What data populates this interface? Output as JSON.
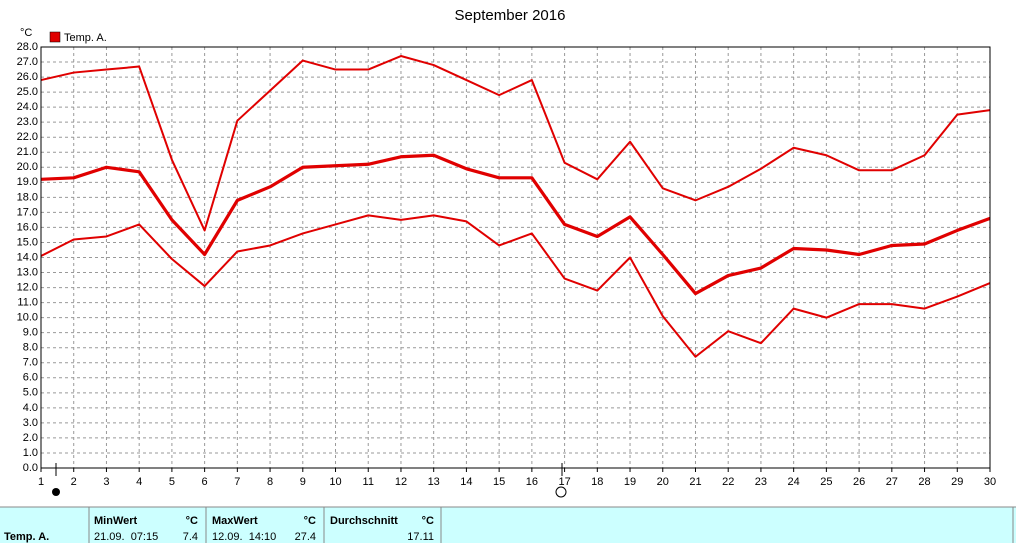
{
  "chart_data": {
    "type": "line",
    "title": "September 2016",
    "y_unit": "°C",
    "x": [
      1,
      2,
      3,
      4,
      5,
      6,
      7,
      8,
      9,
      10,
      11,
      12,
      13,
      14,
      15,
      16,
      17,
      18,
      19,
      20,
      21,
      22,
      23,
      24,
      25,
      26,
      27,
      28,
      29,
      30
    ],
    "series": [
      {
        "name": "Temp. A.",
        "color": "#e00000",
        "values": [
          19.2,
          19.3,
          20.0,
          19.7,
          16.5,
          14.2,
          17.8,
          18.7,
          20.0,
          20.1,
          20.2,
          20.7,
          20.8,
          19.9,
          19.3,
          19.3,
          16.2,
          15.4,
          16.7,
          14.2,
          11.6,
          12.8,
          13.3,
          14.6,
          14.5,
          14.2,
          14.8,
          14.9,
          15.8,
          16.6
        ],
        "high": [
          25.8,
          26.3,
          26.5,
          26.7,
          20.5,
          15.8,
          23.1,
          25.1,
          27.1,
          26.5,
          26.5,
          27.4,
          26.8,
          25.8,
          24.8,
          25.8,
          20.3,
          19.2,
          21.7,
          18.6,
          17.8,
          18.7,
          19.9,
          21.3,
          20.8,
          19.8,
          19.8,
          20.8,
          23.5,
          23.8
        ],
        "low": [
          14.1,
          15.2,
          15.4,
          16.2,
          13.9,
          12.1,
          14.4,
          14.8,
          15.6,
          16.2,
          16.8,
          16.5,
          16.8,
          16.4,
          14.8,
          15.6,
          12.6,
          11.8,
          14.0,
          10.1,
          7.4,
          9.1,
          8.3,
          10.6,
          10.0,
          10.9,
          10.9,
          10.6,
          11.4,
          12.3
        ]
      }
    ],
    "xlim": [
      1,
      30
    ],
    "xticks": [
      1,
      2,
      3,
      4,
      5,
      6,
      7,
      8,
      9,
      10,
      11,
      12,
      13,
      14,
      15,
      16,
      17,
      18,
      19,
      20,
      21,
      22,
      23,
      24,
      25,
      26,
      27,
      28,
      29,
      30
    ],
    "ylim": [
      0,
      28
    ],
    "yticks": [
      {
        "value": 0,
        "label": "0.0"
      },
      {
        "value": 1,
        "label": "1.0"
      },
      {
        "value": 2,
        "label": "2.0"
      },
      {
        "value": 3,
        "label": "3.0"
      },
      {
        "value": 4,
        "label": "4.0"
      },
      {
        "value": 5,
        "label": "5.0"
      },
      {
        "value": 6,
        "label": "6.0"
      },
      {
        "value": 7,
        "label": "7.0"
      },
      {
        "value": 8,
        "label": "8.0"
      },
      {
        "value": 9,
        "label": "9.0"
      },
      {
        "value": 10,
        "label": "10.0"
      },
      {
        "value": 11,
        "label": "11.0"
      },
      {
        "value": 12,
        "label": "12.0"
      },
      {
        "value": 13,
        "label": "13.0"
      },
      {
        "value": 14,
        "label": "14.0"
      },
      {
        "value": 15,
        "label": "15.0"
      },
      {
        "value": 16,
        "label": "16.0"
      },
      {
        "value": 17,
        "label": "17.0"
      },
      {
        "value": 18,
        "label": "18.0"
      },
      {
        "value": 19,
        "label": "19.0"
      },
      {
        "value": 20,
        "label": "20.0"
      },
      {
        "value": 21,
        "label": "21.0"
      },
      {
        "value": 22,
        "label": "22.0"
      },
      {
        "value": 23,
        "label": "23.0"
      },
      {
        "value": 24,
        "label": "24.0"
      },
      {
        "value": 25,
        "label": "25.0"
      },
      {
        "value": 26,
        "label": "26.0"
      },
      {
        "value": 27,
        "label": "27.0"
      },
      {
        "value": 28,
        "label": "28.0"
      }
    ],
    "grid": true
  },
  "summary_table": {
    "row_label": "Temp. A.",
    "headers": [
      "MinWert",
      "°C",
      "MaxWert",
      "°C",
      "Durchschnitt",
      "°C"
    ],
    "cells": [
      "21.09.  07:15",
      7.4,
      "12.09.  14:10",
      27.4,
      17.11
    ]
  }
}
